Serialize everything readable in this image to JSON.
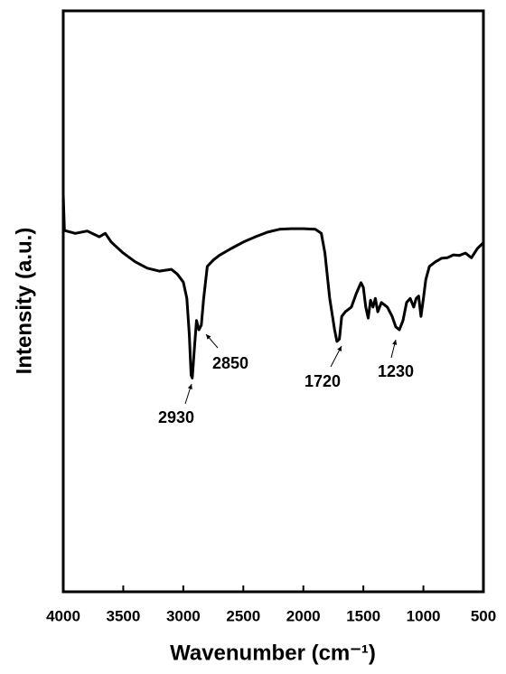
{
  "chart_data": {
    "type": "line",
    "xlabel": "Wavenumber (cm⁻¹)",
    "ylabel": "Intensity (a.u.)",
    "xlim": [
      4000,
      500
    ],
    "xticks": [
      4000,
      3500,
      3000,
      2500,
      2000,
      1500,
      1000,
      500
    ],
    "ylim": [
      0,
      100
    ],
    "color": "#000000",
    "x": [
      4000,
      3990,
      3900,
      3800,
      3700,
      3650,
      3600,
      3500,
      3400,
      3300,
      3200,
      3100,
      3050,
      3000,
      2970,
      2950,
      2935,
      2925,
      2910,
      2890,
      2870,
      2850,
      2830,
      2800,
      2750,
      2700,
      2600,
      2500,
      2400,
      2300,
      2200,
      2100,
      2000,
      1900,
      1850,
      1820,
      1780,
      1740,
      1720,
      1700,
      1680,
      1650,
      1600,
      1560,
      1520,
      1500,
      1480,
      1460,
      1440,
      1420,
      1400,
      1380,
      1350,
      1300,
      1260,
      1230,
      1200,
      1170,
      1140,
      1110,
      1080,
      1060,
      1040,
      1020,
      1000,
      980,
      950,
      900,
      850,
      800,
      750,
      700,
      650,
      600,
      550,
      510,
      500
    ],
    "y": [
      68.4,
      62.2,
      61.7,
      62.1,
      61.1,
      61.7,
      60.2,
      58.3,
      56.8,
      55.7,
      55.2,
      55.5,
      54.7,
      53.3,
      50.5,
      44.3,
      37.3,
      36.8,
      41.2,
      46.7,
      45.1,
      45.9,
      50.5,
      56.0,
      57.1,
      57.9,
      59.1,
      60.2,
      61.1,
      61.9,
      62.4,
      62.5,
      62.5,
      62.4,
      61.7,
      58.3,
      50.5,
      45.1,
      43.1,
      43.5,
      47.4,
      48.2,
      49.0,
      51.3,
      53.2,
      52.4,
      49.0,
      47.1,
      50.2,
      49.0,
      50.5,
      48.2,
      49.8,
      49.0,
      47.4,
      45.6,
      45.1,
      46.7,
      49.8,
      50.5,
      49.0,
      50.5,
      50.9,
      47.4,
      50.5,
      53.7,
      56.0,
      56.8,
      57.4,
      57.5,
      58.0,
      57.9,
      58.3,
      57.5,
      59.1,
      59.9,
      59.6
    ],
    "annotations": [
      "2930",
      "2850",
      "1720",
      "1230"
    ]
  }
}
